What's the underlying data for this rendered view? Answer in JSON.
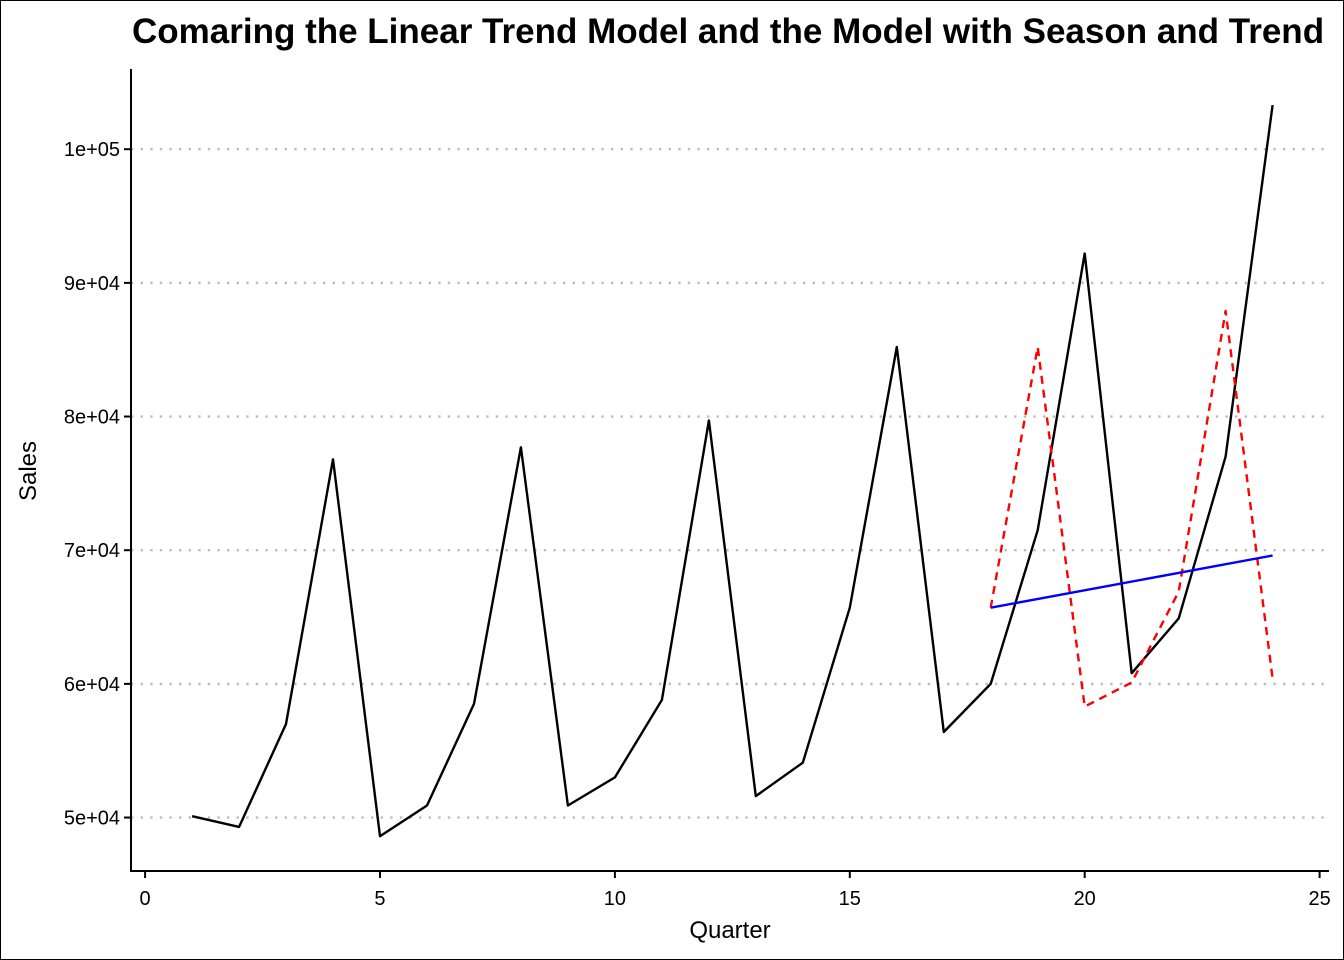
{
  "chart_data": {
    "type": "line",
    "title": "Comaring the Linear Trend Model and the Model with Season and Trend",
    "xlabel": "Quarter",
    "ylabel": "Sales",
    "xlim": [
      -0.3,
      25.2
    ],
    "ylim": [
      46000,
      106000
    ],
    "x_ticks": [
      0,
      5,
      10,
      15,
      20,
      25
    ],
    "x_tick_labels": [
      "0",
      "5",
      "10",
      "15",
      "20",
      "25"
    ],
    "y_ticks": [
      50000,
      60000,
      70000,
      80000,
      90000,
      100000
    ],
    "y_tick_labels": [
      "5e+04",
      "6e+04",
      "7e+04",
      "8e+04",
      "9e+04",
      "1e+05"
    ],
    "grid": "horizontal dotted",
    "legend": "none",
    "series": [
      {
        "color": "#000000",
        "dash": "solid",
        "x": [
          1,
          2,
          3,
          4,
          5,
          6,
          7,
          8,
          9,
          10,
          11,
          12,
          13,
          14,
          15,
          16,
          17,
          18,
          19,
          20,
          21,
          22,
          23,
          24
        ],
        "values": [
          50100,
          49300,
          57000,
          76800,
          48600,
          50900,
          58500,
          77700,
          50900,
          53000,
          58800,
          79700,
          51600,
          54100,
          65700,
          85200,
          56400,
          60000,
          71500,
          92200,
          60800,
          64900,
          77000,
          103300
        ]
      },
      {
        "color": "#ff0000",
        "dash": "dashed",
        "x": [
          18,
          19,
          20,
          21,
          22,
          23,
          24
        ],
        "values": [
          65700,
          85200,
          58300,
          60100,
          66900,
          87900,
          60400
        ]
      },
      {
        "color": "#0000ff",
        "dash": "solid",
        "x": [
          18,
          24
        ],
        "values": [
          65700,
          69600
        ]
      }
    ]
  }
}
